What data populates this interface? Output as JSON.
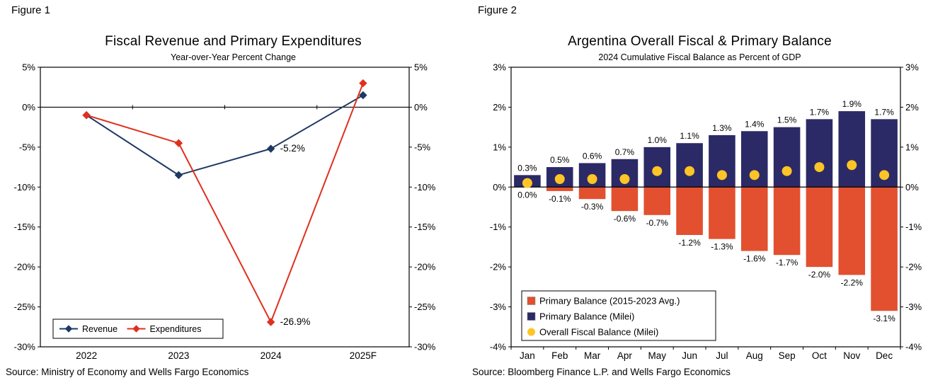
{
  "figures": [
    {
      "label": "Figure 1"
    },
    {
      "label": "Figure 2"
    }
  ],
  "chart_data": [
    {
      "type": "line",
      "title": "Fiscal Revenue and Primary Expenditures",
      "subtitle": "Year-over-Year Percent Change",
      "source": "Source: Ministry of Economy and Wells Fargo Economics",
      "categories": [
        "2022",
        "2023",
        "2024",
        "2025F"
      ],
      "ylim": [
        -30,
        5
      ],
      "ytick_values": [
        5,
        0,
        -5,
        -10,
        -15,
        -20,
        -25,
        -30
      ],
      "ytick_labels": [
        "5%",
        "0%",
        "-5%",
        "-10%",
        "-15%",
        "-20%",
        "-25%",
        "-30%"
      ],
      "grid": false,
      "legend_position": "bottom-left-inside",
      "series": [
        {
          "name": "Revenue",
          "kind": "line",
          "marker": "diamond",
          "color": "#1F3864",
          "values": [
            -1.0,
            -8.5,
            -5.2,
            1.5
          ]
        },
        {
          "name": "Expenditures",
          "kind": "line",
          "marker": "diamond",
          "color": "#E0301E",
          "values": [
            -1.0,
            -4.5,
            -26.9,
            3.0
          ]
        }
      ],
      "annotations": [
        {
          "series": 0,
          "index": 2,
          "text": "-5.2%"
        },
        {
          "series": 1,
          "index": 2,
          "text": "-26.9%"
        }
      ]
    },
    {
      "type": "bar",
      "title": "Argentina Overall Fiscal & Primary Balance",
      "subtitle": "2024 Cumulative Fiscal Balance as Percent of GDP",
      "source": "Source: Bloomberg Finance L.P. and Wells Fargo Economics",
      "categories": [
        "Jan",
        "Feb",
        "Mar",
        "Apr",
        "May",
        "Jun",
        "Jul",
        "Aug",
        "Sep",
        "Oct",
        "Nov",
        "Dec"
      ],
      "ylim": [
        -4,
        3
      ],
      "ytick_values": [
        3,
        2,
        1,
        0,
        -1,
        -2,
        -3,
        -4
      ],
      "ytick_labels": [
        "3%",
        "2%",
        "1%",
        "0%",
        "-1%",
        "-2%",
        "-3%",
        "-4%"
      ],
      "grid": false,
      "legend_position": "bottom-left-inside",
      "series": [
        {
          "name": "Primary Balance (2015-2023 Avg.)",
          "kind": "bar",
          "color": "#E2502F",
          "values": [
            0.0,
            -0.1,
            -0.3,
            -0.6,
            -0.7,
            -1.2,
            -1.3,
            -1.6,
            -1.7,
            -2.0,
            -2.2,
            -3.1
          ],
          "labels": [
            "0.0%",
            "-0.1%",
            "-0.3%",
            "-0.6%",
            "-0.7%",
            "-1.2%",
            "-1.3%",
            "-1.6%",
            "-1.7%",
            "-2.0%",
            "-2.2%",
            "-3.1%"
          ]
        },
        {
          "name": "Primary Balance (Milei)",
          "kind": "bar",
          "color": "#2B2A67",
          "values": [
            0.3,
            0.5,
            0.6,
            0.7,
            1.0,
            1.1,
            1.3,
            1.4,
            1.5,
            1.7,
            1.9,
            1.7
          ],
          "labels": [
            "0.3%",
            "0.5%",
            "0.6%",
            "0.7%",
            "1.0%",
            "1.1%",
            "1.3%",
            "1.4%",
            "1.5%",
            "1.7%",
            "1.9%",
            "1.7%"
          ]
        },
        {
          "name": "Overall Fiscal Balance (Milei)",
          "kind": "dot",
          "color": "#FFC425",
          "values": [
            0.1,
            0.2,
            0.2,
            0.2,
            0.4,
            0.4,
            0.3,
            0.3,
            0.4,
            0.5,
            0.55,
            0.3
          ]
        }
      ]
    }
  ]
}
